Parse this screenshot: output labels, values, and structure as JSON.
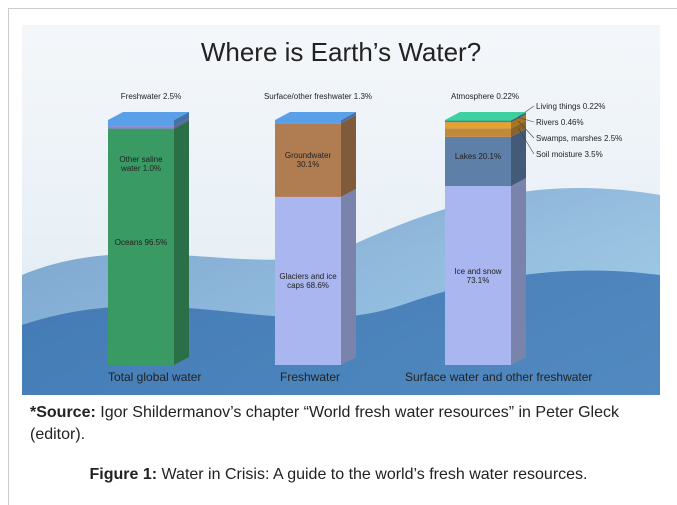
{
  "chart_data": {
    "type": "stacked_bar_3d",
    "title": "Where is Earth’s Water?",
    "categories": [
      "Total global water",
      "Freshwater",
      "Surface water and other freshwater"
    ],
    "bars": [
      {
        "values": [
          96.5,
          1.0,
          2.5
        ],
        "value_labels": [
          "Oceans 96.5%",
          "Other saline water 1.0%",
          "Freshwater 2.5%"
        ],
        "colors": [
          "#3a9a63",
          "#8a86d8",
          "#5aa0e8"
        ]
      },
      {
        "values": [
          68.6,
          30.1,
          1.3
        ],
        "value_labels": [
          "Glaciers and ice caps 68.6%",
          "Groundwater 30.1%",
          "Surface/other freshwater 1.3%"
        ],
        "colors": [
          "#a9b6ef",
          "#b07d52",
          "#5aa0e8"
        ]
      },
      {
        "values": [
          73.1,
          20.1,
          3.5,
          2.5,
          0.46,
          0.22,
          0.22
        ],
        "value_labels": [
          "Ice and snow 73.1%",
          "Lakes 20.1%",
          "Soil moisture 3.5%",
          "Swamps, marshes 2.5%",
          "Rivers 0.46%",
          "Living things 0.22%",
          "Atmosphere 0.22%"
        ],
        "colors": [
          "#a9b6ef",
          "#5d7fa8",
          "#c08a3a",
          "#e6a22a",
          "#3b6fc1",
          "#3b9a6a",
          "#3ed1a0"
        ]
      }
    ]
  },
  "source": {
    "label": "*Source:",
    "text": "Igor Shildermanov’s chapter “World fresh water resources” in Peter Gleck (editor)."
  },
  "caption": {
    "label": "Figure 1:",
    "text": "Water in Crisis: A guide to the world’s fresh water resources."
  }
}
